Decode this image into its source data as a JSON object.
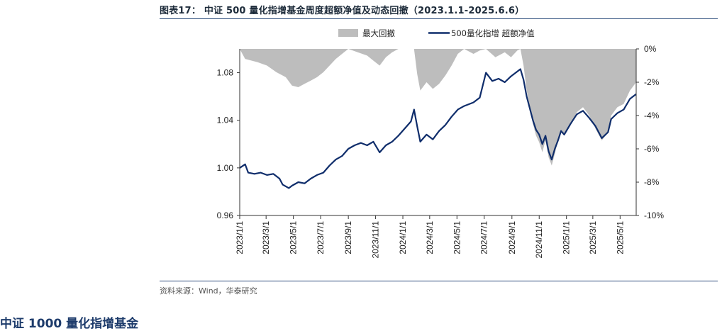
{
  "figure": {
    "title": "图表17： 中证 500 量化指增基金周度超额净值及动态回撤（2023.1.1-2025.6.6）",
    "source": "资料来源：Wind，华泰研究",
    "next_heading": "中证 1000 量化指增基金"
  },
  "chart_data": {
    "type": "line",
    "title": "中证 500 量化指增基金周度超额净值及动态回撤（2023.1.1-2025.6.6）",
    "legend_position": "top-center",
    "grid": false,
    "x_ticks": [
      "2023/1/1",
      "2023/3/1",
      "2023/5/1",
      "2023/7/1",
      "2023/9/1",
      "2023/11/1",
      "2024/1/1",
      "2024/3/1",
      "2024/5/1",
      "2024/7/1",
      "2024/9/1",
      "2024/11/1",
      "2025/1/1",
      "2025/3/1",
      "2025/5/1"
    ],
    "xlim": [
      "2023-01-01",
      "2025-06-06"
    ],
    "y_left": {
      "ylim": [
        0.96,
        1.1
      ],
      "ticks": [
        0.96,
        1.0,
        1.04,
        1.08
      ],
      "tick_labels": [
        "0.96",
        "1.00",
        "1.04",
        "1.08"
      ]
    },
    "y_right": {
      "ylim": [
        -10,
        0
      ],
      "ticks": [
        0,
        -2,
        -4,
        -6,
        -8,
        -10
      ],
      "tick_labels": [
        "0%",
        "-2%",
        "-4%",
        "-6%",
        "-8%",
        "-10%"
      ]
    },
    "series": [
      {
        "name": "最大回撤",
        "type": "area",
        "axis": "right",
        "color": "#bdbdbd",
        "points": [
          [
            "2023-01-01",
            0
          ],
          [
            "2023-01-13",
            -0.6
          ],
          [
            "2023-02-10",
            -0.8
          ],
          [
            "2023-03-03",
            -1.0
          ],
          [
            "2023-03-24",
            -1.4
          ],
          [
            "2023-04-14",
            -1.7
          ],
          [
            "2023-04-28",
            -2.2
          ],
          [
            "2023-05-12",
            -2.3
          ],
          [
            "2023-05-26",
            -2.1
          ],
          [
            "2023-06-09",
            -1.9
          ],
          [
            "2023-06-23",
            -1.7
          ],
          [
            "2023-07-07",
            -1.4
          ],
          [
            "2023-07-21",
            -1.0
          ],
          [
            "2023-08-04",
            -0.6
          ],
          [
            "2023-08-18",
            -0.3
          ],
          [
            "2023-09-01",
            0
          ],
          [
            "2023-09-22",
            -0.2
          ],
          [
            "2023-10-13",
            -0.4
          ],
          [
            "2023-10-27",
            -0.7
          ],
          [
            "2023-11-10",
            -1.0
          ],
          [
            "2023-11-24",
            -0.5
          ],
          [
            "2023-12-08",
            -0.2
          ],
          [
            "2023-12-22",
            0
          ],
          [
            "2024-01-26",
            0
          ],
          [
            "2024-02-02",
            -1.5
          ],
          [
            "2024-02-09",
            -2.5
          ],
          [
            "2024-02-23",
            -2.0
          ],
          [
            "2024-03-08",
            -2.4
          ],
          [
            "2024-03-22",
            -2.1
          ],
          [
            "2024-04-05",
            -1.6
          ],
          [
            "2024-04-19",
            -1.0
          ],
          [
            "2024-05-03",
            -0.3
          ],
          [
            "2024-05-17",
            0
          ],
          [
            "2024-06-07",
            -0.3
          ],
          [
            "2024-06-21",
            -0.1
          ],
          [
            "2024-07-05",
            0
          ],
          [
            "2024-07-26",
            -0.5
          ],
          [
            "2024-08-16",
            -0.2
          ],
          [
            "2024-08-30",
            -0.5
          ],
          [
            "2024-09-13",
            -0.1
          ],
          [
            "2024-09-20",
            0
          ],
          [
            "2024-09-27",
            -1.0
          ],
          [
            "2024-10-04",
            -2.5
          ],
          [
            "2024-10-11",
            -3.5
          ],
          [
            "2024-10-18",
            -4.5
          ],
          [
            "2024-10-25",
            -5.2
          ],
          [
            "2024-11-01",
            -5.6
          ],
          [
            "2024-11-08",
            -6.2
          ],
          [
            "2024-11-15",
            -5.5
          ],
          [
            "2024-11-22",
            -6.5
          ],
          [
            "2024-11-29",
            -7.0
          ],
          [
            "2024-12-06",
            -6.3
          ],
          [
            "2024-12-13",
            -5.5
          ],
          [
            "2024-12-20",
            -5.0
          ],
          [
            "2024-12-27",
            -5.2
          ],
          [
            "2025-01-10",
            -4.6
          ],
          [
            "2025-01-24",
            -3.8
          ],
          [
            "2025-02-07",
            -3.5
          ],
          [
            "2025-02-21",
            -4.0
          ],
          [
            "2025-03-07",
            -4.8
          ],
          [
            "2025-03-21",
            -5.5
          ],
          [
            "2025-04-04",
            -5.0
          ],
          [
            "2025-04-11",
            -4.0
          ],
          [
            "2025-04-25",
            -3.5
          ],
          [
            "2025-05-09",
            -3.3
          ],
          [
            "2025-05-23",
            -2.5
          ],
          [
            "2025-06-06",
            -2.0
          ]
        ]
      },
      {
        "name": "500量化指增 超额净值",
        "type": "line",
        "axis": "left",
        "color": "#0f2d6b",
        "points": [
          [
            "2023-01-01",
            1.0
          ],
          [
            "2023-01-13",
            1.003
          ],
          [
            "2023-01-20",
            0.996
          ],
          [
            "2023-02-03",
            0.995
          ],
          [
            "2023-02-17",
            0.996
          ],
          [
            "2023-03-03",
            0.994
          ],
          [
            "2023-03-17",
            0.995
          ],
          [
            "2023-03-31",
            0.991
          ],
          [
            "2023-04-07",
            0.986
          ],
          [
            "2023-04-21",
            0.983
          ],
          [
            "2023-04-28",
            0.985
          ],
          [
            "2023-05-12",
            0.988
          ],
          [
            "2023-05-26",
            0.987
          ],
          [
            "2023-06-09",
            0.991
          ],
          [
            "2023-06-23",
            0.994
          ],
          [
            "2023-07-07",
            0.996
          ],
          [
            "2023-07-21",
            1.002
          ],
          [
            "2023-08-04",
            1.007
          ],
          [
            "2023-08-18",
            1.01
          ],
          [
            "2023-09-01",
            1.016
          ],
          [
            "2023-09-15",
            1.019
          ],
          [
            "2023-09-29",
            1.021
          ],
          [
            "2023-10-13",
            1.019
          ],
          [
            "2023-10-27",
            1.022
          ],
          [
            "2023-11-10",
            1.013
          ],
          [
            "2023-11-24",
            1.019
          ],
          [
            "2023-12-08",
            1.022
          ],
          [
            "2023-12-22",
            1.027
          ],
          [
            "2024-01-05",
            1.033
          ],
          [
            "2024-01-19",
            1.039
          ],
          [
            "2024-01-26",
            1.049
          ],
          [
            "2024-02-02",
            1.035
          ],
          [
            "2024-02-09",
            1.022
          ],
          [
            "2024-02-23",
            1.028
          ],
          [
            "2024-03-08",
            1.024
          ],
          [
            "2024-03-22",
            1.031
          ],
          [
            "2024-04-05",
            1.036
          ],
          [
            "2024-04-19",
            1.043
          ],
          [
            "2024-05-03",
            1.049
          ],
          [
            "2024-05-17",
            1.052
          ],
          [
            "2024-06-07",
            1.055
          ],
          [
            "2024-06-21",
            1.059
          ],
          [
            "2024-07-05",
            1.08
          ],
          [
            "2024-07-19",
            1.073
          ],
          [
            "2024-08-02",
            1.075
          ],
          [
            "2024-08-16",
            1.072
          ],
          [
            "2024-08-30",
            1.077
          ],
          [
            "2024-09-13",
            1.081
          ],
          [
            "2024-09-20",
            1.083
          ],
          [
            "2024-09-27",
            1.074
          ],
          [
            "2024-10-04",
            1.06
          ],
          [
            "2024-10-11",
            1.05
          ],
          [
            "2024-10-18",
            1.04
          ],
          [
            "2024-10-25",
            1.032
          ],
          [
            "2024-11-01",
            1.028
          ],
          [
            "2024-11-08",
            1.02
          ],
          [
            "2024-11-15",
            1.027
          ],
          [
            "2024-11-22",
            1.014
          ],
          [
            "2024-11-29",
            1.007
          ],
          [
            "2024-12-06",
            1.016
          ],
          [
            "2024-12-13",
            1.023
          ],
          [
            "2024-12-20",
            1.031
          ],
          [
            "2024-12-27",
            1.028
          ],
          [
            "2025-01-10",
            1.037
          ],
          [
            "2025-01-24",
            1.045
          ],
          [
            "2025-02-07",
            1.048
          ],
          [
            "2025-02-21",
            1.042
          ],
          [
            "2025-03-07",
            1.035
          ],
          [
            "2025-03-21",
            1.025
          ],
          [
            "2025-04-04",
            1.03
          ],
          [
            "2025-04-11",
            1.041
          ],
          [
            "2025-04-25",
            1.046
          ],
          [
            "2025-05-09",
            1.049
          ],
          [
            "2025-05-23",
            1.058
          ],
          [
            "2025-06-06",
            1.062
          ]
        ]
      }
    ]
  }
}
